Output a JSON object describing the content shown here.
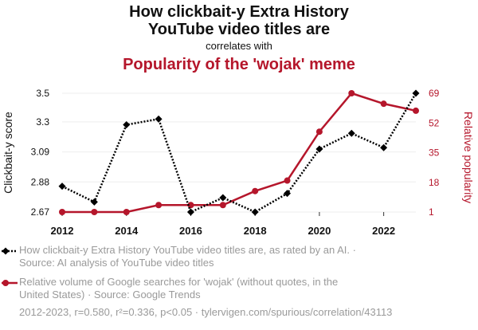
{
  "title_line1": "How clickbait-y Extra History",
  "title_line2": "YouTube video titles are",
  "connector": "correlates with",
  "title2": "Popularity of the 'wojak' meme",
  "colors": {
    "series1": "#000000",
    "series2": "#b5162b",
    "muted": "#9a9a9a"
  },
  "legend": {
    "s1_line1": "How clickbait-y Extra History YouTube video titles are, as rated by an AI. ·",
    "s1_line2": "Source: AI analysis of YouTube video titles",
    "s2_line1": "Relative volume of Google searches for 'wojak' (without quotes, in the",
    "s2_line2": "United States) · Source: Google Trends"
  },
  "footer": "2012-2023, r=0.580, r²=0.336, p<0.05 · tylervigen.com/spurious/correlation/43113",
  "chart_data": {
    "type": "line",
    "x": [
      2012,
      2013,
      2014,
      2015,
      2016,
      2017,
      2018,
      2019,
      2020,
      2021,
      2022,
      2023
    ],
    "xticks": [
      "2012",
      "2014",
      "2016",
      "2018",
      "2020",
      "2022"
    ],
    "series": [
      {
        "name": "How clickbait-y Extra History YouTube video titles are, as rated by an AI.",
        "axis": "left",
        "values": [
          2.85,
          2.74,
          3.28,
          3.32,
          2.67,
          2.77,
          2.67,
          2.8,
          3.11,
          3.22,
          3.12,
          3.5
        ]
      },
      {
        "name": "Relative volume of Google searches for 'wojak' (without quotes, in the United States)",
        "axis": "right",
        "values": [
          1,
          1,
          1,
          5,
          5,
          5,
          13,
          19,
          47,
          69,
          63,
          59
        ]
      }
    ],
    "ylabel_left": "Clickbait-y score",
    "ylabel_right": "Relative popularity",
    "yticks_left": [
      "2.67",
      "2.88",
      "3.09",
      "3.3",
      "3.5"
    ],
    "yticks_right": [
      "1",
      "18",
      "35",
      "52",
      "69"
    ],
    "ylim_left": [
      2.67,
      3.5
    ],
    "ylim_right": [
      1,
      69
    ]
  }
}
